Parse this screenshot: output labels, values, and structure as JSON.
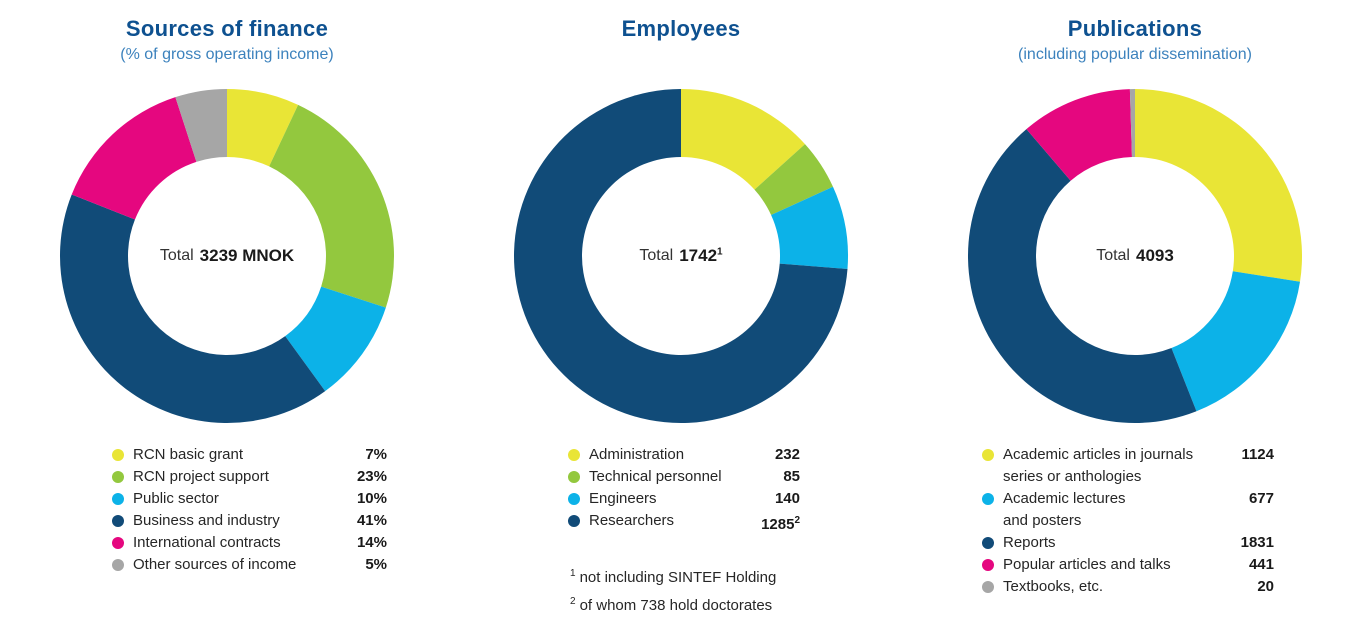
{
  "palette": {
    "yellow": "#e9e536",
    "green": "#93c83e",
    "light_blue": "#0cb2e8",
    "dark_blue": "#114b78",
    "magenta": "#e5077f",
    "gray": "#a6a6a6",
    "title_blue": "#0e5190",
    "subtitle_blue": "#3c82bd",
    "background": "#ffffff"
  },
  "chart_data": [
    {
      "type": "pie",
      "variant": "donut",
      "title": "Sources of finance",
      "subtitle": "(% of gross operating income)",
      "center_label": {
        "prefix": "Total",
        "value": "3239 MNOK",
        "superscript": ""
      },
      "legend_position": "bottom",
      "segments": [
        {
          "label": "RCN basic grant",
          "value": 7,
          "display": "7%",
          "color": "yellow"
        },
        {
          "label": "RCN project support",
          "value": 23,
          "display": "23%",
          "color": "green"
        },
        {
          "label": "Public sector",
          "value": 10,
          "display": "10%",
          "color": "light_blue"
        },
        {
          "label": "Business and industry",
          "value": 41,
          "display": "41%",
          "color": "dark_blue"
        },
        {
          "label": "International contracts",
          "value": 14,
          "display": "14%",
          "color": "magenta"
        },
        {
          "label": "Other sources of income",
          "value": 5,
          "display": "5%",
          "color": "gray"
        }
      ],
      "footnotes": []
    },
    {
      "type": "pie",
      "variant": "donut",
      "title": "Employees",
      "subtitle": "",
      "center_label": {
        "prefix": "Total",
        "value": "1742",
        "superscript": "1"
      },
      "legend_position": "bottom",
      "segments": [
        {
          "label": "Administration",
          "value": 232,
          "display": "232",
          "color": "yellow"
        },
        {
          "label": "Technical personnel",
          "value": 85,
          "display": "85",
          "color": "green"
        },
        {
          "label": "Engineers",
          "value": 140,
          "display": "140",
          "color": "light_blue"
        },
        {
          "label": "Researchers",
          "value": 1285,
          "display": "1285",
          "value_superscript": "2",
          "color": "dark_blue"
        }
      ],
      "footnotes": [
        {
          "marker": "1",
          "text": "not including SINTEF Holding"
        },
        {
          "marker": "2",
          "text": "of whom 738 hold doctorates"
        }
      ]
    },
    {
      "type": "pie",
      "variant": "donut",
      "title": "Publications",
      "subtitle": "(including popular dissemination)",
      "center_label": {
        "prefix": "Total",
        "value": "4093",
        "superscript": ""
      },
      "legend_position": "bottom",
      "segments": [
        {
          "label": "Academic articles in journals series or anthologies",
          "label_lines": [
            "Academic articles in journals",
            "series or anthologies"
          ],
          "value": 1124,
          "display": "1124",
          "color": "yellow"
        },
        {
          "label": "Academic lectures and posters",
          "label_lines": [
            "Academic lectures",
            "and posters"
          ],
          "value": 677,
          "display": "677",
          "color": "light_blue"
        },
        {
          "label": "Reports",
          "value": 1831,
          "display": "1831",
          "color": "dark_blue"
        },
        {
          "label": "Popular articles and talks",
          "value": 441,
          "display": "441",
          "color": "magenta"
        },
        {
          "label": "Textbooks, etc.",
          "value": 20,
          "display": "20",
          "color": "gray"
        }
      ],
      "footnotes": []
    }
  ]
}
